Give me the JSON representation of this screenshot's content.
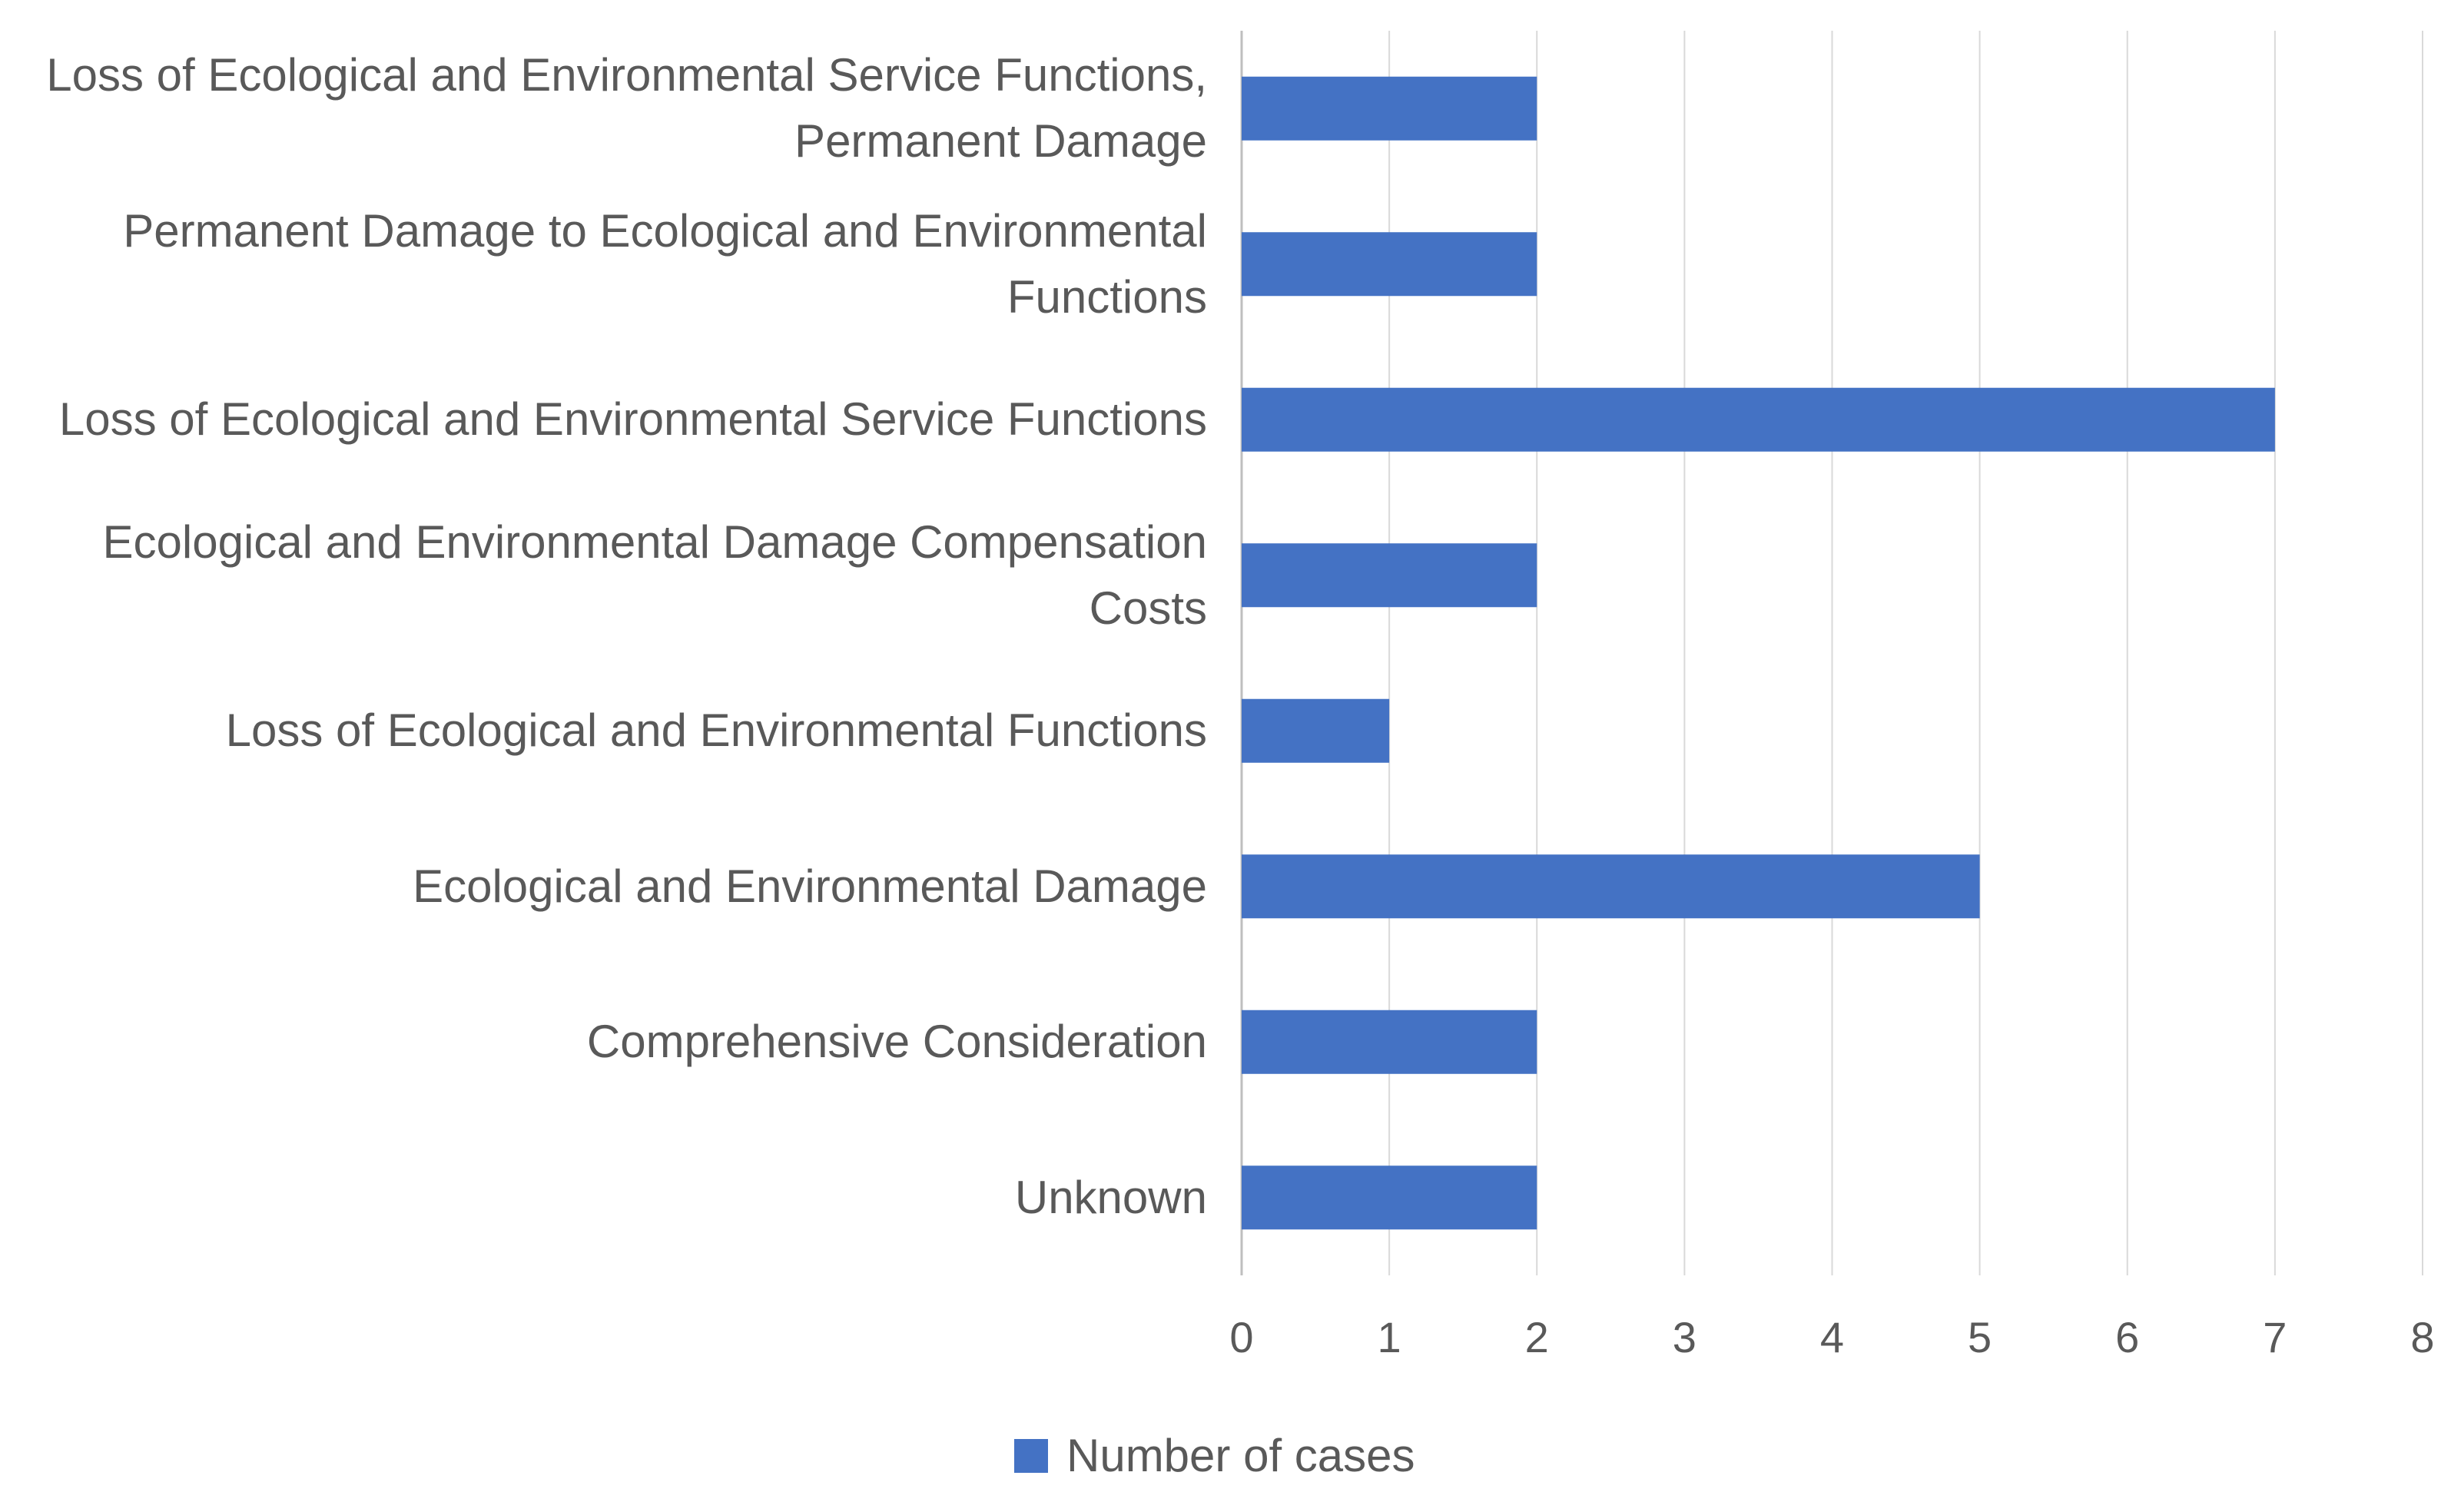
{
  "chart_data": {
    "type": "bar",
    "orientation": "horizontal",
    "categories": [
      "Loss of Ecological and Environmental Service Functions, Permanent Damage",
      "Permanent Damage to Ecological and Environmental Functions",
      "Loss of Ecological and Environmental Service Functions",
      "Ecological and Environmental Damage Compensation Costs",
      "Loss of Ecological and Environmental Functions",
      "Ecological and Environmental Damage",
      "Comprehensive Consideration",
      "Unknown"
    ],
    "series": [
      {
        "name": "Number of cases",
        "values": [
          2,
          2,
          7,
          2,
          1,
          5,
          2,
          2
        ],
        "color": "#4472C4"
      }
    ],
    "xlim": [
      0,
      8
    ],
    "xticks": [
      "0",
      "1",
      "2",
      "3",
      "4",
      "5",
      "6",
      "7",
      "8"
    ],
    "grid": "vertical",
    "legend_position": "bottom",
    "title": "",
    "xlabel": "",
    "ylabel": ""
  }
}
